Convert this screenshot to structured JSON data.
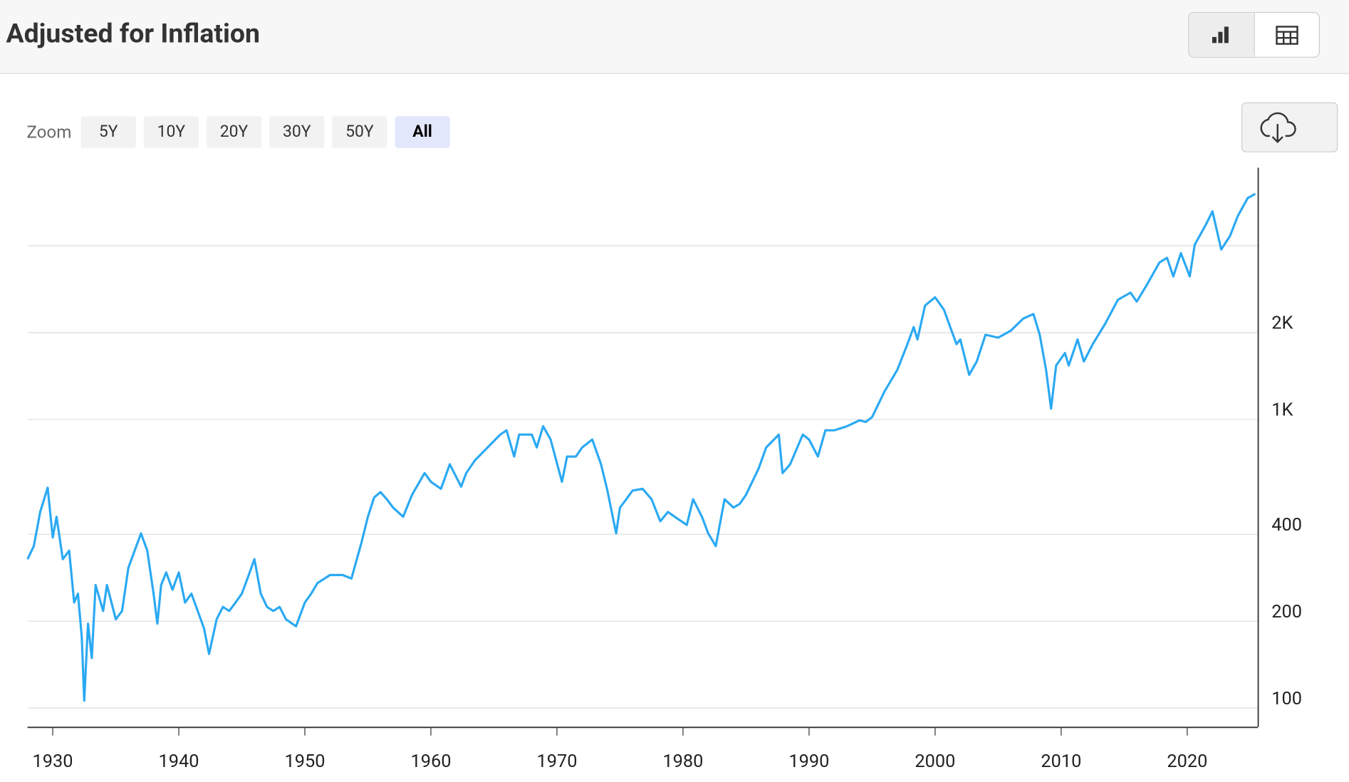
{
  "chart_data": {
    "type": "line",
    "title": "Adjusted for Inflation",
    "zoom": {
      "label": "Zoom",
      "options": [
        "5Y",
        "10Y",
        "20Y",
        "30Y",
        "50Y",
        "All"
      ]
    },
    "log_y": true,
    "grid": true,
    "xlim": [
      1928,
      2025.6
    ],
    "xticks": [
      1930,
      1940,
      1950,
      1960,
      1970,
      1980,
      1990,
      2000,
      2010,
      2020
    ],
    "ylim": [
      86,
      7450
    ],
    "yticks": [
      100,
      200,
      400,
      {
        "value": 1000,
        "label": "1K"
      },
      {
        "value": 2000,
        "label": "2K"
      }
    ],
    "ygrid": [
      100,
      200,
      400,
      1000,
      2000,
      4000
    ],
    "x": [
      1928.0,
      1928.5,
      1929.0,
      1929.6,
      1930.0,
      1930.3,
      1930.8,
      1931.3,
      1931.7,
      1932.0,
      1932.3,
      1932.5,
      1932.8,
      1933.1,
      1933.4,
      1934.0,
      1934.3,
      1935.0,
      1935.5,
      1936.0,
      1936.5,
      1937.0,
      1937.5,
      1938.0,
      1938.3,
      1938.6,
      1939.0,
      1939.5,
      1940.0,
      1940.5,
      1941.0,
      1941.5,
      1942.0,
      1942.4,
      1943.0,
      1943.5,
      1944.0,
      1944.5,
      1945.0,
      1945.5,
      1946.0,
      1946.5,
      1947.0,
      1947.5,
      1948.0,
      1948.5,
      1949.3,
      1950.0,
      1950.5,
      1951.0,
      1952.0,
      1953.0,
      1953.7,
      1954.5,
      1955.0,
      1955.5,
      1956.0,
      1956.5,
      1957.0,
      1957.8,
      1958.5,
      1959.5,
      1960.0,
      1960.8,
      1961.5,
      1962.4,
      1962.8,
      1963.5,
      1964.5,
      1965.5,
      1966.0,
      1966.6,
      1967.0,
      1968.0,
      1968.4,
      1968.9,
      1969.5,
      1970.4,
      1970.8,
      1971.5,
      1972.0,
      1972.8,
      1973.5,
      1974.0,
      1974.7,
      1975.0,
      1975.5,
      1976.0,
      1976.8,
      1977.5,
      1978.2,
      1978.8,
      1979.5,
      1980.3,
      1980.8,
      1981.5,
      1982.0,
      1982.6,
      1983.3,
      1984.0,
      1984.5,
      1985.0,
      1986.0,
      1986.6,
      1987.6,
      1987.9,
      1988.5,
      1989.5,
      1990.0,
      1990.7,
      1991.3,
      1992.0,
      1993.0,
      1994.0,
      1994.5,
      1995.0,
      1996.0,
      1997.0,
      1997.8,
      1998.3,
      1998.6,
      1999.2,
      2000.0,
      2000.7,
      2001.2,
      2001.7,
      2002.0,
      2002.7,
      2003.3,
      2004.0,
      2005.0,
      2006.0,
      2007.0,
      2007.8,
      2008.3,
      2008.8,
      2009.2,
      2009.6,
      2010.3,
      2010.6,
      2011.3,
      2011.8,
      2012.5,
      2013.5,
      2014.5,
      2015.5,
      2016.0,
      2016.8,
      2017.8,
      2018.4,
      2018.9,
      2019.5,
      2020.2,
      2020.6,
      2021.5,
      2022.0,
      2022.7,
      2023.4,
      2024.0,
      2024.8,
      2025.4
    ],
    "series": [
      {
        "name": "Adjusted for Inflation",
        "color": "#2aa9f3",
        "values": [
          328,
          364,
          478,
          580,
          390,
          460,
          328,
          351,
          232,
          249,
          177,
          106,
          196,
          149,
          267,
          217,
          267,
          203,
          217,
          306,
          351,
          403,
          351,
          249,
          196,
          267,
          295,
          257,
          295,
          232,
          249,
          217,
          189,
          154,
          203,
          224,
          217,
          232,
          249,
          285,
          328,
          249,
          224,
          217,
          224,
          203,
          192,
          232,
          249,
          271,
          289,
          289,
          281,
          376,
          460,
          537,
          560,
          529,
          495,
          460,
          548,
          652,
          608,
          575,
          699,
          585,
          652,
          722,
          800,
          886,
          917,
          744,
          886,
          886,
          800,
          947,
          852,
          608,
          744,
          744,
          800,
          852,
          699,
          567,
          403,
          495,
          529,
          567,
          575,
          529,
          444,
          478,
          455,
          431,
          529,
          460,
          403,
          364,
          529,
          495,
          510,
          548,
          676,
          800,
          886,
          652,
          699,
          886,
          852,
          744,
          917,
          917,
          947,
          993,
          980,
          1019,
          1253,
          1486,
          1823,
          2090,
          1893,
          2480,
          2650,
          2400,
          2090,
          1823,
          1893,
          1428,
          1588,
          1966,
          1920,
          2030,
          2238,
          2320,
          1966,
          1486,
          1090,
          1538,
          1700,
          1538,
          1893,
          1588,
          1823,
          2150,
          2600,
          2750,
          2560,
          2930,
          3500,
          3630,
          3130,
          3770,
          3130,
          4030,
          4750,
          5260,
          3880,
          4330,
          5060,
          5850,
          6050
        ]
      }
    ]
  }
}
